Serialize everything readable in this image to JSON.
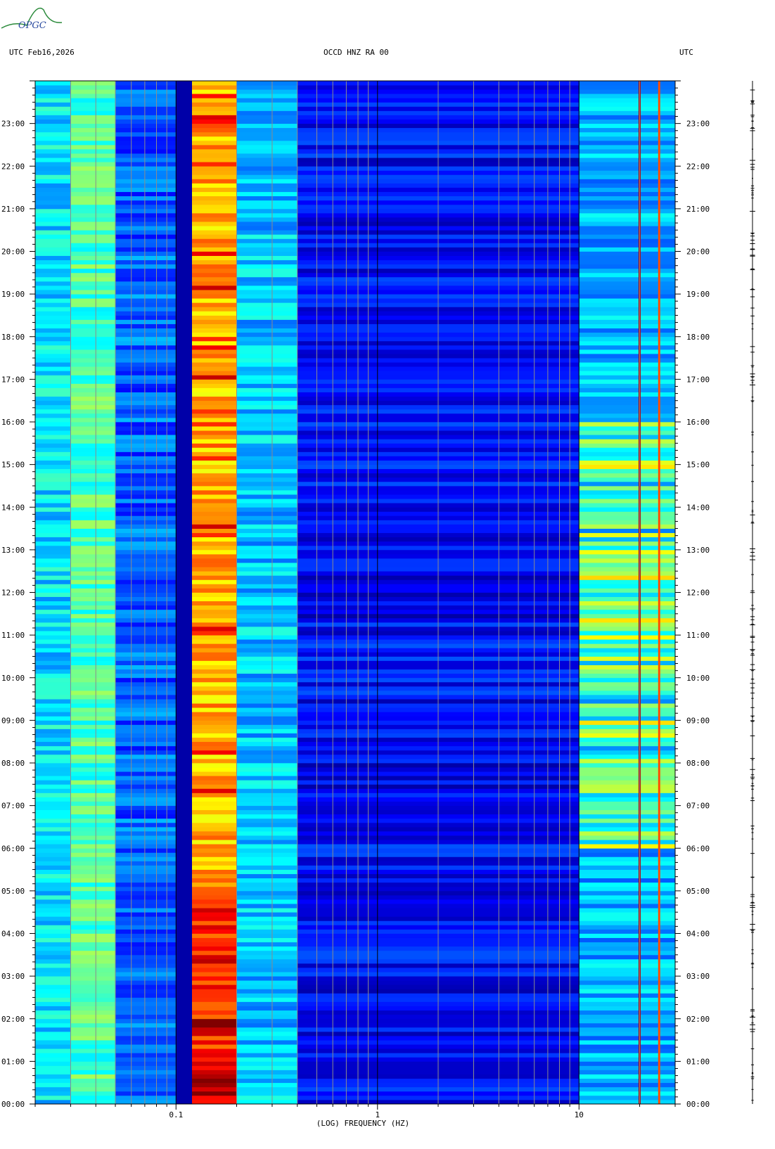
{
  "logo": {
    "text": "OPGC"
  },
  "header": {
    "left": "UTC  Feb16,2026",
    "center": "OCCD HNZ RA 00",
    "right": "UTC"
  },
  "chart_data": {
    "type": "heatmap",
    "title": "OCCD HNZ RA 00",
    "date": "Feb16,2026",
    "xlabel": "(LOG) FREQUENCY (HZ)",
    "ylabel": "UTC",
    "x_scale": "log",
    "xlim": [
      0.02,
      30
    ],
    "x_ticks": [
      {
        "value": 0.1,
        "label": "0.1"
      },
      {
        "value": 1,
        "label": "1"
      },
      {
        "value": 10,
        "label": "10"
      }
    ],
    "y_ticks": [
      "00:00",
      "01:00",
      "02:00",
      "03:00",
      "04:00",
      "05:00",
      "06:00",
      "07:00",
      "08:00",
      "09:00",
      "10:00",
      "11:00",
      "12:00",
      "13:00",
      "14:00",
      "15:00",
      "16:00",
      "17:00",
      "18:00",
      "19:00",
      "20:00",
      "21:00",
      "22:00",
      "23:00"
    ],
    "ylim_hours": [
      0,
      24
    ],
    "colormap": [
      "#00008b",
      "#0000ff",
      "#0080ff",
      "#00ffff",
      "#80ff80",
      "#ffff00",
      "#ff8000",
      "#ff0000",
      "#800000"
    ],
    "bands": [
      {
        "f_low": 0.02,
        "f_high": 0.03,
        "level": 0.35
      },
      {
        "f_low": 0.03,
        "f_high": 0.05,
        "level": 0.45
      },
      {
        "f_low": 0.05,
        "f_high": 0.1,
        "level": 0.22
      },
      {
        "f_low": 0.12,
        "f_high": 0.2,
        "level": 0.7
      },
      {
        "f_low": 0.2,
        "f_high": 0.4,
        "level": 0.32
      },
      {
        "f_low": 0.4,
        "f_high": 10,
        "level": 0.12
      },
      {
        "f_low": 10,
        "f_high": 30,
        "level": 0.3
      }
    ],
    "features": [
      {
        "f": 20,
        "description_level": 0.95
      },
      {
        "f": 25,
        "description_level": 0.8
      }
    ]
  }
}
